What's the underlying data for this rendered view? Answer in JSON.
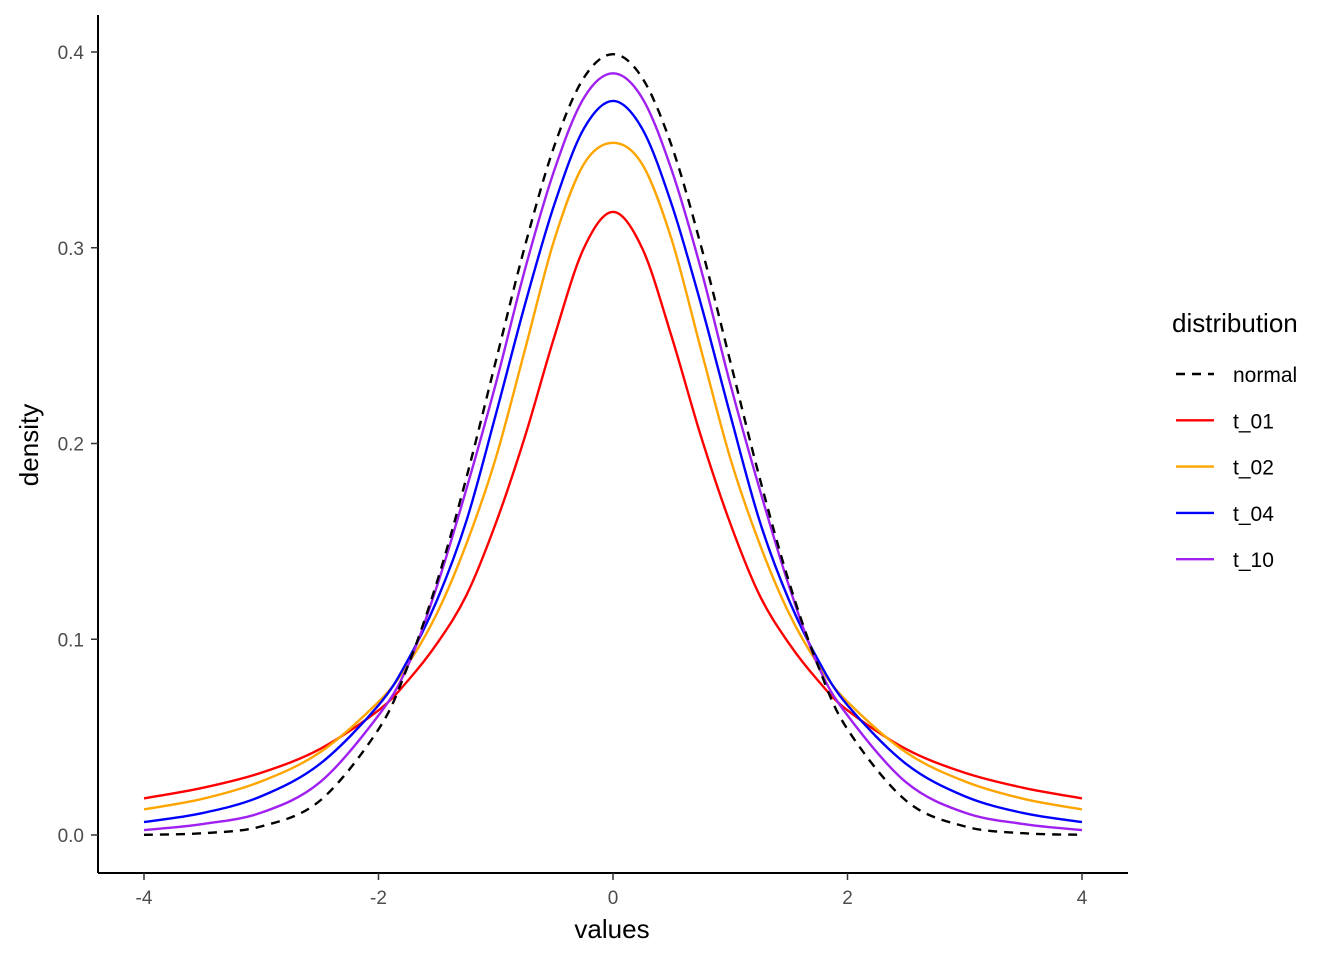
{
  "chart_data": {
    "type": "line",
    "title": "",
    "xlabel": "values",
    "ylabel": "density",
    "xlim": [
      -4,
      4
    ],
    "ylim": [
      0,
      0.4
    ],
    "x_ticks": [
      -4,
      -2,
      0,
      2,
      4
    ],
    "x_tick_labels": [
      "-4",
      "-2",
      "0",
      "2",
      "4"
    ],
    "y_ticks": [
      0.0,
      0.1,
      0.2,
      0.3,
      0.4
    ],
    "y_tick_labels": [
      "0.0",
      "0.1",
      "0.2",
      "0.3",
      "0.4"
    ],
    "grid": false,
    "legend": {
      "title": "distribution",
      "position": "right"
    },
    "x": [
      -4.0,
      -3.5,
      -3.0,
      -2.5,
      -2.0,
      -1.75,
      -1.5,
      -1.25,
      -1.0,
      -0.75,
      -0.5,
      -0.25,
      0.0,
      0.25,
      0.5,
      0.75,
      1.0,
      1.25,
      1.5,
      1.75,
      2.0,
      2.5,
      3.0,
      3.5,
      4.0
    ],
    "series": [
      {
        "name": "normal",
        "color": "#000000",
        "dashed": true,
        "values": [
          0.0001,
          0.0009,
          0.0044,
          0.0175,
          0.054,
          0.0863,
          0.1295,
          0.1826,
          0.242,
          0.3011,
          0.3521,
          0.3867,
          0.3989,
          0.3867,
          0.3521,
          0.3011,
          0.242,
          0.1826,
          0.1295,
          0.0863,
          0.054,
          0.0175,
          0.0044,
          0.0009,
          0.0001
        ]
      },
      {
        "name": "t_01",
        "color": "#ff0000",
        "dashed": false,
        "values": [
          0.0187,
          0.0241,
          0.0318,
          0.0439,
          0.0637,
          0.0788,
          0.0979,
          0.1225,
          0.1592,
          0.2037,
          0.2546,
          0.2996,
          0.3183,
          0.2996,
          0.2546,
          0.2037,
          0.1592,
          0.1225,
          0.0979,
          0.0788,
          0.0637,
          0.0439,
          0.0318,
          0.0241,
          0.0187
        ]
      },
      {
        "name": "t_02",
        "color": "#ffa500",
        "dashed": false,
        "values": [
          0.0131,
          0.0185,
          0.0274,
          0.0422,
          0.068,
          0.0871,
          0.1134,
          0.1488,
          0.1925,
          0.2481,
          0.3042,
          0.3426,
          0.3536,
          0.3426,
          0.3042,
          0.2481,
          0.1925,
          0.1488,
          0.1134,
          0.0871,
          0.068,
          0.0422,
          0.0274,
          0.0185,
          0.0131
        ]
      },
      {
        "name": "t_04",
        "color": "#0000ff",
        "dashed": false,
        "values": [
          0.0066,
          0.0112,
          0.0198,
          0.0363,
          0.0663,
          0.0893,
          0.1201,
          0.1605,
          0.2147,
          0.2712,
          0.3222,
          0.3607,
          0.375,
          0.3607,
          0.3222,
          0.2712,
          0.2147,
          0.1605,
          0.1201,
          0.0893,
          0.0663,
          0.0363,
          0.0198,
          0.0112,
          0.0066
        ]
      },
      {
        "name": "t_10",
        "color": "#a020f0",
        "dashed": false,
        "values": [
          0.0025,
          0.0056,
          0.0114,
          0.0269,
          0.0611,
          0.0864,
          0.1274,
          0.1768,
          0.2304,
          0.2891,
          0.3397,
          0.3764,
          0.3891,
          0.3764,
          0.3397,
          0.2891,
          0.2304,
          0.1768,
          0.1274,
          0.0864,
          0.0611,
          0.0269,
          0.0114,
          0.0056,
          0.0025
        ]
      }
    ]
  }
}
